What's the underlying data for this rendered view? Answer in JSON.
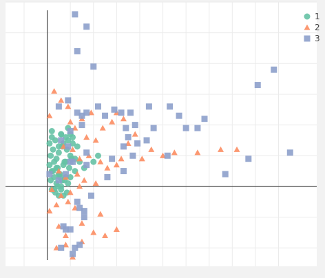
{
  "chart_data": {
    "type": "scatter",
    "title": "",
    "xlabel": "",
    "ylabel": "",
    "x_range": [
      -1.0,
      10.7
    ],
    "y_range": [
      -2.6,
      6.0
    ],
    "grid": true,
    "zero_lines": true,
    "legend": {
      "position": "top-right",
      "entries": [
        "1",
        "2",
        "3"
      ]
    },
    "colors": {
      "1": "#66c2a5",
      "2": "#fc8d62",
      "3": "#8da0cb",
      "background": "#ffffff",
      "grid": "#ebebeb",
      "zeroline": "#444444"
    },
    "series": [
      {
        "name": "1",
        "marker": "circle",
        "color": "#66c2a5",
        "x": [
          0.1,
          0.2,
          0.35,
          0.5,
          0.6,
          0.7,
          0.8,
          0.9,
          1.0,
          1.1,
          0.15,
          0.25,
          0.4,
          0.5,
          0.65,
          0.75,
          0.85,
          1.0,
          1.1,
          1.2,
          0.1,
          0.2,
          0.3,
          0.45,
          0.55,
          0.7,
          0.8,
          0.95,
          1.05,
          1.2,
          0.15,
          0.3,
          0.4,
          0.5,
          0.6,
          0.75,
          0.9,
          1.0,
          0.2,
          0.35,
          0.45,
          0.6,
          0.7,
          0.85,
          0.25,
          0.4,
          0.55,
          0.65,
          0.8,
          0.3,
          0.5,
          1.4,
          1.6,
          2.0,
          2.2,
          0.2,
          0.6,
          0.9,
          1.3
        ],
        "y": [
          1.4,
          1.6,
          1.5,
          1.3,
          1.7,
          1.4,
          1.6,
          1.5,
          1.7,
          1.6,
          1.0,
          1.2,
          0.9,
          1.1,
          1.3,
          0.8,
          1.2,
          1.0,
          1.4,
          0.9,
          0.7,
          0.5,
          0.8,
          0.6,
          0.4,
          0.7,
          0.3,
          0.6,
          0.9,
          0.5,
          0.2,
          0.3,
          0.1,
          0.4,
          0.0,
          0.2,
          0.1,
          0.3,
          -0.1,
          -0.2,
          0.0,
          -0.1,
          -0.3,
          -0.2,
          0.5,
          0.6,
          0.3,
          0.2,
          0.8,
          -0.1,
          -0.3,
          0.8,
          0.6,
          0.8,
          1.0,
          1.8,
          1.7,
          1.9,
          1.3
        ]
      },
      {
        "name": "2",
        "marker": "triangle-up",
        "color": "#fc8d62",
        "x": [
          0.3,
          0.1,
          0.6,
          0.9,
          1.0,
          1.2,
          1.5,
          1.7,
          1.9,
          2.1,
          2.4,
          2.8,
          3.0,
          3.3,
          3.5,
          3.8,
          4.1,
          4.5,
          5.0,
          5.5,
          6.5,
          7.5,
          8.2,
          0.7,
          1.1,
          1.4,
          1.8,
          2.3,
          2.6,
          3.0,
          3.2,
          0.5,
          0.8,
          1.3,
          1.6,
          2.1,
          0.2,
          0.6,
          1.0,
          1.4,
          0.4,
          0.9,
          1.2,
          0.5,
          0.8,
          1.5,
          2.0,
          2.5,
          3.0,
          0.1,
          0.4,
          0.8,
          1.1,
          1.5,
          2.3
        ],
        "y": [
          3.1,
          2.3,
          2.8,
          2.6,
          2.1,
          1.9,
          2.2,
          1.6,
          2.4,
          1.5,
          1.9,
          2.1,
          2.4,
          2.2,
          1.4,
          1.7,
          0.9,
          1.2,
          1.0,
          1.1,
          1.1,
          1.2,
          1.2,
          1.3,
          1.2,
          0.9,
          1.0,
          0.8,
          0.6,
          0.7,
          0.9,
          0.5,
          0.3,
          0.4,
          0.2,
          0.1,
          -0.1,
          -0.3,
          -0.2,
          0.0,
          -0.6,
          -0.5,
          -0.7,
          -1.3,
          -1.6,
          -1.8,
          -1.5,
          -1.6,
          -1.4,
          -0.8,
          -2.0,
          -1.9,
          -2.3,
          -1.2,
          -0.9
        ]
      },
      {
        "name": "3",
        "marker": "square",
        "color": "#8da0cb",
        "x": [
          1.2,
          1.3,
          1.7,
          2.0,
          1.7,
          0.5,
          0.9,
          1.3,
          1.5,
          1.0,
          1.7,
          1.5,
          0.6,
          1.0,
          2.6,
          3.3,
          3.7,
          3.9,
          4.3,
          4.6,
          3.4,
          3.5,
          3.3,
          2.8,
          5.2,
          5.7,
          6.0,
          6.5,
          7.7,
          8.7,
          9.1,
          9.8,
          10.5,
          0.9,
          0.7,
          0.1,
          0.5,
          0.8,
          1.1,
          1.4,
          1.7,
          2.2,
          2.5,
          2.9,
          3.2,
          3.6,
          3.8,
          4.4,
          5.3,
          6.8,
          0.6,
          0.8,
          1.4,
          1.1,
          1.6,
          1.3,
          1.9,
          1.6,
          1.2,
          1.0
        ],
        "y": [
          5.6,
          4.4,
          5.2,
          3.9,
          1.1,
          2.6,
          2.8,
          2.4,
          2.0,
          1.8,
          2.4,
          2.3,
          1.5,
          0.8,
          0.3,
          1.3,
          1.0,
          1.4,
          1.5,
          1.9,
          1.9,
          1.6,
          0.5,
          0.9,
          1.0,
          2.3,
          1.9,
          1.9,
          0.4,
          0.9,
          3.3,
          3.8,
          1.1,
          1.3,
          -1.3,
          0.4,
          0.2,
          0.4,
          0.8,
          -0.7,
          0.7,
          2.6,
          2.3,
          2.5,
          2.4,
          2.4,
          2.0,
          2.6,
          2.6,
          2.2,
          -2.0,
          -1.4,
          -1.9,
          -2.2,
          -0.8,
          -0.5,
          -0.3,
          -1.0,
          -2.0,
          -1.4
        ]
      }
    ]
  }
}
